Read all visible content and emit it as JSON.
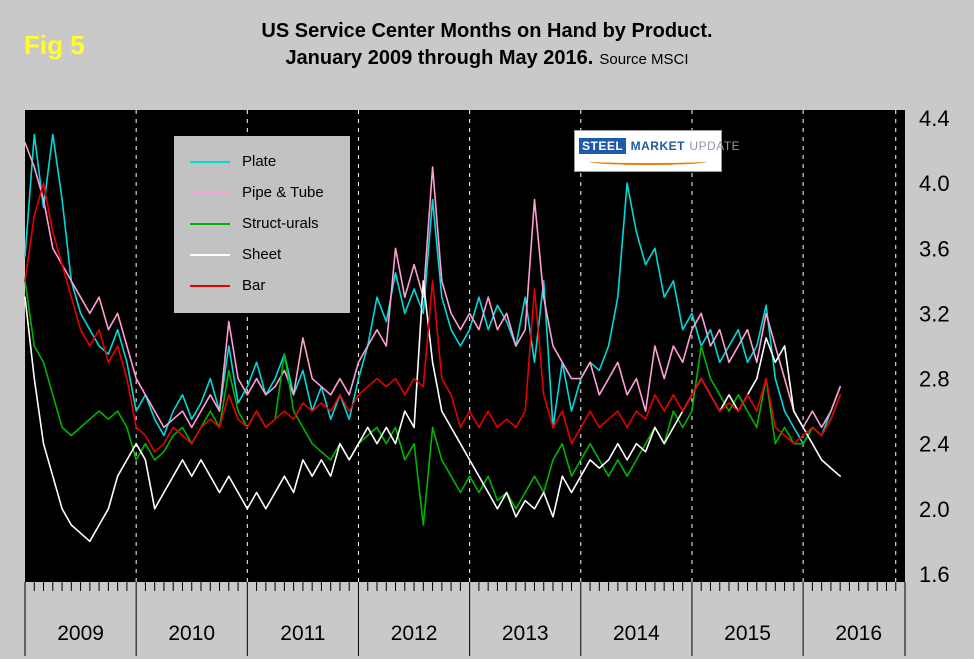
{
  "figure": {
    "fig_label": "Fig 5",
    "title_line1": "US Service Center Months on Hand by Product.",
    "title_line2": "January 2009 through May 2016.",
    "source": "Source MSCI"
  },
  "logo": {
    "word1": "STEEL",
    "word2": "MARKET",
    "word3": "UPDATE"
  },
  "chart_data": {
    "type": "line",
    "title": "US Service Center Months on Hand by Product. January 2009 through May 2016.",
    "x_start": "2009-01",
    "x_end": "2016-05",
    "x_unit": "month",
    "year_labels": [
      "2009",
      "2010",
      "2011",
      "2012",
      "2013",
      "2014",
      "2015",
      "2016"
    ],
    "y_ticks": [
      4.4,
      4.0,
      3.6,
      3.2,
      2.8,
      2.4,
      2.0,
      1.6
    ],
    "ylim": [
      1.55,
      4.45
    ],
    "plot_background": "#000000",
    "grid": "vertical dashed white lines at January of each year",
    "legend_position": "top-left inside plot",
    "series": [
      {
        "name": "Plate",
        "color": "#00d9d9",
        "values": [
          3.55,
          4.3,
          3.85,
          4.3,
          3.9,
          3.4,
          3.2,
          3.1,
          3.0,
          2.95,
          3.1,
          2.9,
          2.6,
          2.7,
          2.55,
          2.45,
          2.6,
          2.7,
          2.55,
          2.65,
          2.8,
          2.6,
          3.0,
          2.65,
          2.75,
          2.9,
          2.7,
          2.8,
          2.95,
          2.7,
          2.85,
          2.6,
          2.75,
          2.55,
          2.7,
          2.55,
          2.8,
          3.0,
          3.3,
          3.15,
          3.45,
          3.2,
          3.35,
          3.2,
          3.9,
          3.3,
          3.1,
          3.0,
          3.1,
          3.3,
          3.1,
          3.25,
          3.15,
          3.0,
          3.3,
          2.9,
          3.4,
          2.5,
          2.9,
          2.6,
          2.8,
          2.9,
          2.85,
          3.0,
          3.3,
          4.0,
          3.7,
          3.5,
          3.6,
          3.3,
          3.4,
          3.1,
          3.2,
          3.0,
          3.1,
          2.9,
          3.0,
          3.1,
          2.9,
          3.0,
          3.25,
          2.8,
          2.6,
          2.5,
          2.4,
          2.5,
          2.45,
          2.6,
          2.75
        ]
      },
      {
        "name": "Pipe & Tube",
        "color": "#ff9ed2",
        "values": [
          4.25,
          4.1,
          3.9,
          3.6,
          3.5,
          3.4,
          3.3,
          3.2,
          3.3,
          3.1,
          3.2,
          3.0,
          2.8,
          2.7,
          2.6,
          2.5,
          2.55,
          2.6,
          2.5,
          2.6,
          2.7,
          2.6,
          3.15,
          2.8,
          2.7,
          2.8,
          2.7,
          2.75,
          2.85,
          2.7,
          3.05,
          2.8,
          2.75,
          2.7,
          2.8,
          2.7,
          2.9,
          3.0,
          3.1,
          3.0,
          3.6,
          3.3,
          3.5,
          3.3,
          4.1,
          3.4,
          3.2,
          3.1,
          3.2,
          3.1,
          3.3,
          3.1,
          3.2,
          3.0,
          3.1,
          3.9,
          3.3,
          3.0,
          2.9,
          2.8,
          2.8,
          2.9,
          2.7,
          2.8,
          2.9,
          2.7,
          2.8,
          2.6,
          3.0,
          2.8,
          3.0,
          2.9,
          3.1,
          3.2,
          3.0,
          3.1,
          2.9,
          3.0,
          3.1,
          2.9,
          3.2,
          3.0,
          2.8,
          2.6,
          2.5,
          2.6,
          2.5,
          2.6,
          2.75
        ]
      },
      {
        "name": "Struct-urals",
        "color": "#00b400",
        "values": [
          3.4,
          3.0,
          2.9,
          2.7,
          2.5,
          2.45,
          2.5,
          2.55,
          2.6,
          2.55,
          2.6,
          2.5,
          2.3,
          2.4,
          2.3,
          2.35,
          2.45,
          2.5,
          2.4,
          2.5,
          2.6,
          2.5,
          2.85,
          2.6,
          2.5,
          2.6,
          2.5,
          2.55,
          2.95,
          2.6,
          2.5,
          2.4,
          2.35,
          2.3,
          2.4,
          2.3,
          2.4,
          2.45,
          2.5,
          2.4,
          2.5,
          2.3,
          2.4,
          1.9,
          2.5,
          2.3,
          2.2,
          2.1,
          2.2,
          2.1,
          2.2,
          2.05,
          2.1,
          2.0,
          2.1,
          2.2,
          2.1,
          2.3,
          2.4,
          2.2,
          2.3,
          2.4,
          2.3,
          2.2,
          2.3,
          2.2,
          2.3,
          2.4,
          2.5,
          2.4,
          2.6,
          2.5,
          2.6,
          3.0,
          2.8,
          2.7,
          2.6,
          2.7,
          2.6,
          2.5,
          2.8,
          2.4,
          2.5,
          2.4,
          2.4,
          2.5,
          2.45,
          2.55,
          2.7
        ]
      },
      {
        "name": "Sheet",
        "color": "#ffffff",
        "values": [
          3.3,
          2.8,
          2.4,
          2.2,
          2.0,
          1.9,
          1.85,
          1.8,
          1.9,
          2.0,
          2.2,
          2.3,
          2.4,
          2.3,
          2.0,
          2.1,
          2.2,
          2.3,
          2.2,
          2.3,
          2.2,
          2.1,
          2.2,
          2.1,
          2.0,
          2.1,
          2.0,
          2.1,
          2.2,
          2.1,
          2.3,
          2.2,
          2.3,
          2.2,
          2.4,
          2.3,
          2.4,
          2.5,
          2.4,
          2.5,
          2.4,
          2.6,
          2.5,
          3.4,
          2.9,
          2.6,
          2.5,
          2.4,
          2.3,
          2.2,
          2.1,
          2.0,
          2.1,
          1.95,
          2.05,
          2.0,
          2.1,
          1.95,
          2.2,
          2.1,
          2.2,
          2.3,
          2.25,
          2.3,
          2.4,
          2.3,
          2.4,
          2.35,
          2.5,
          2.4,
          2.5,
          2.6,
          2.7,
          2.8,
          2.7,
          2.6,
          2.7,
          2.6,
          2.7,
          2.8,
          3.05,
          2.9,
          3.0,
          2.6,
          2.5,
          2.4,
          2.3,
          2.25,
          2.2
        ]
      },
      {
        "name": "Bar",
        "color": "#e60000",
        "values": [
          3.4,
          3.8,
          4.0,
          3.7,
          3.5,
          3.3,
          3.1,
          3.0,
          3.1,
          2.9,
          3.0,
          2.8,
          2.5,
          2.45,
          2.35,
          2.4,
          2.5,
          2.45,
          2.4,
          2.5,
          2.55,
          2.5,
          2.7,
          2.55,
          2.5,
          2.6,
          2.5,
          2.55,
          2.6,
          2.55,
          2.65,
          2.6,
          2.65,
          2.6,
          2.7,
          2.6,
          2.7,
          2.75,
          2.8,
          2.75,
          2.8,
          2.7,
          2.8,
          2.75,
          3.4,
          2.8,
          2.7,
          2.5,
          2.6,
          2.5,
          2.6,
          2.5,
          2.55,
          2.5,
          2.6,
          3.35,
          2.7,
          2.5,
          2.6,
          2.4,
          2.5,
          2.6,
          2.5,
          2.55,
          2.6,
          2.5,
          2.6,
          2.55,
          2.7,
          2.6,
          2.7,
          2.6,
          2.7,
          2.8,
          2.7,
          2.6,
          2.65,
          2.6,
          2.7,
          2.6,
          2.8,
          2.5,
          2.45,
          2.4,
          2.45,
          2.5,
          2.45,
          2.55,
          2.7
        ]
      }
    ]
  }
}
